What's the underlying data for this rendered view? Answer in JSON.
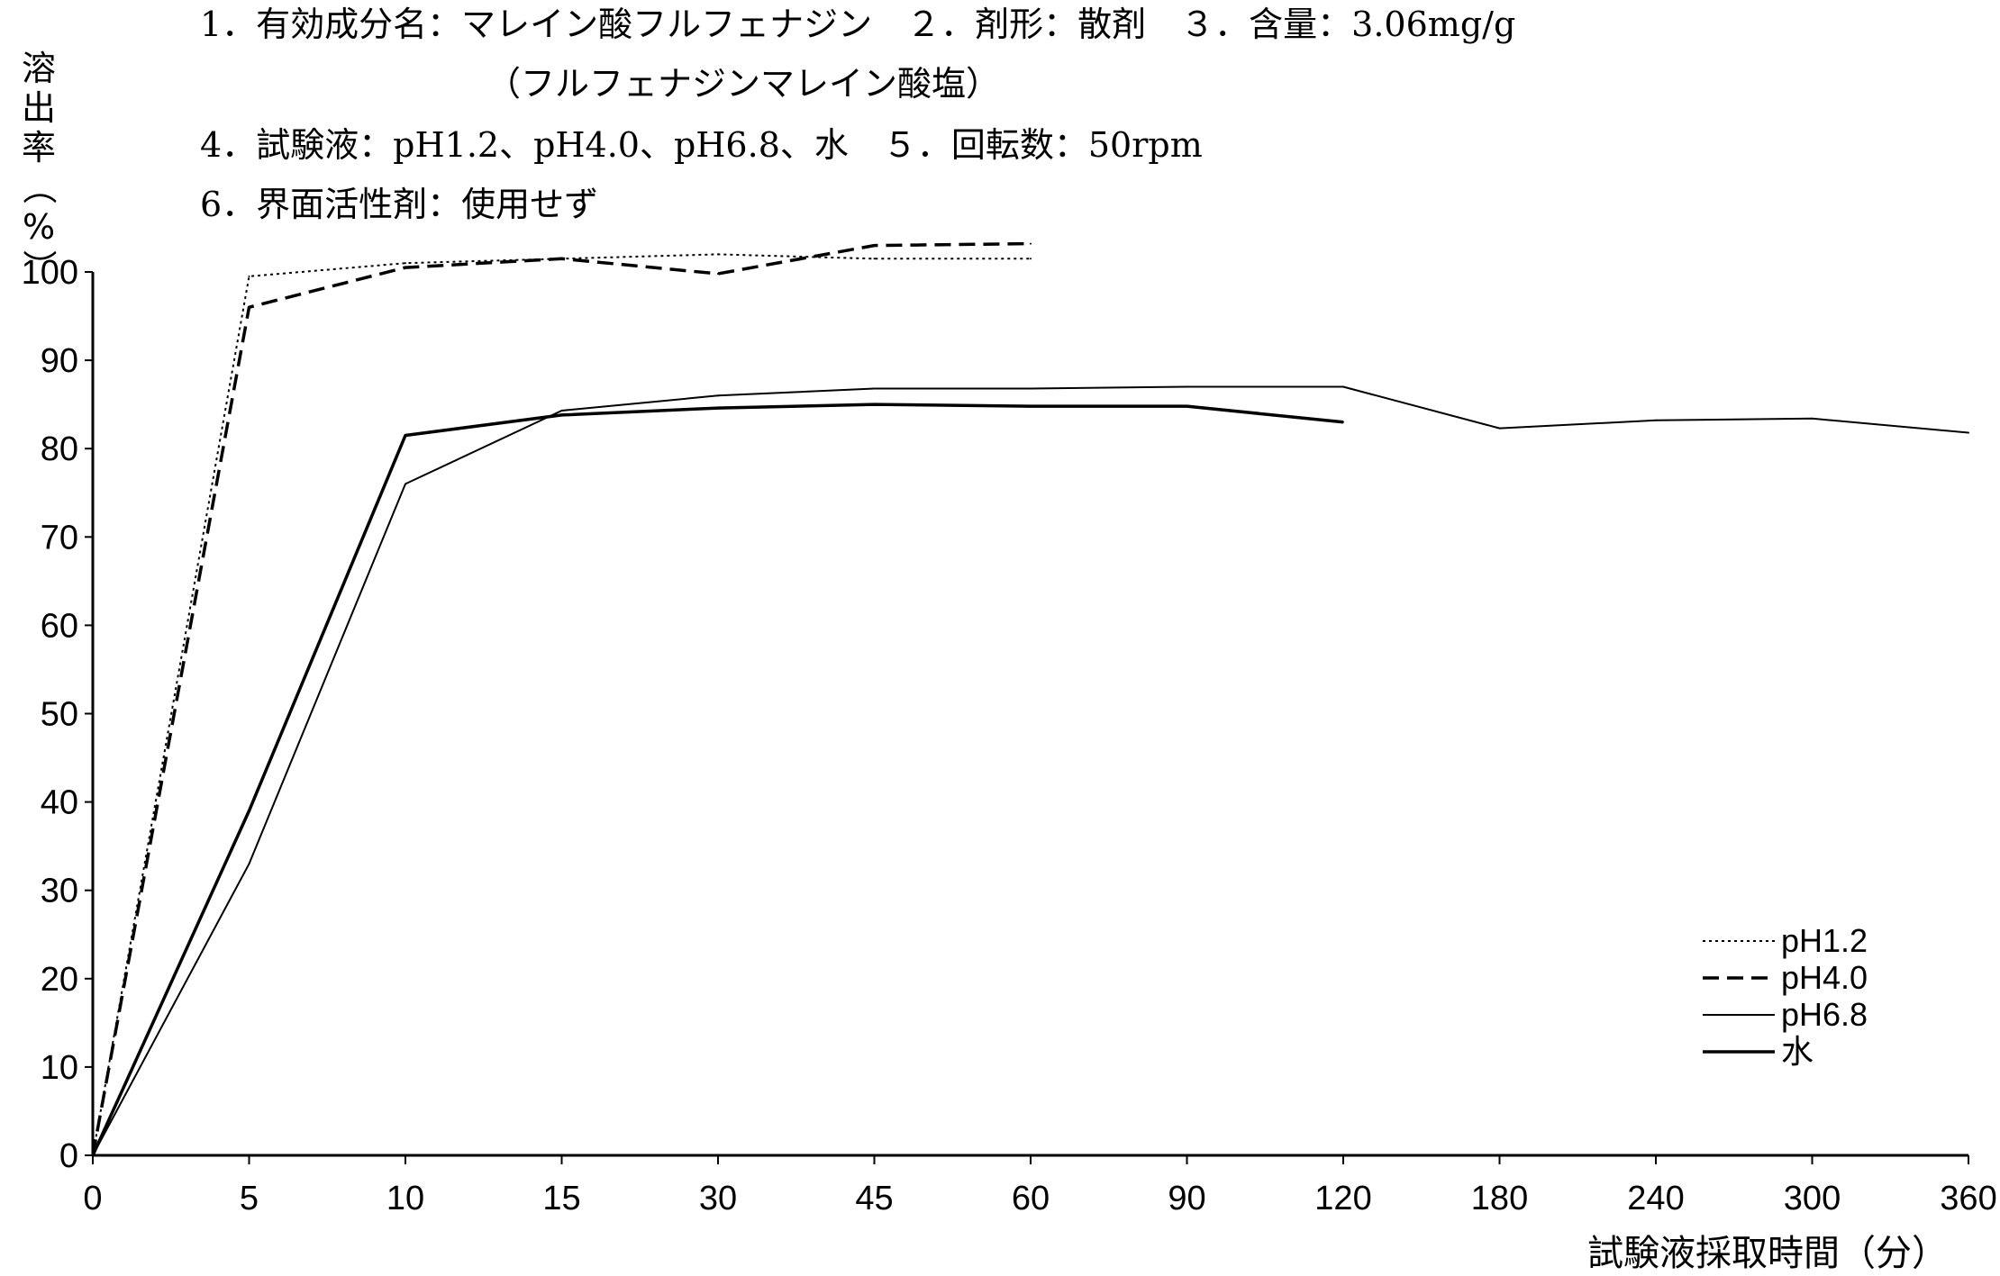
{
  "header": {
    "line1": "1．有効成分名：マレイン酸フルフェナジン　２．剤形：散剤　３．含量：3.06mg/g",
    "line2": "（フルフェナジンマレイン酸塩）",
    "line3": "4．試験液：pH1.2、pH4.0、pH6.8、水　５．回転数：50rpm",
    "line4": "6．界面活性剤：使用せず"
  },
  "chart_data": {
    "type": "line",
    "title": "",
    "xlabel": "試験液採取時間（分）",
    "ylabel": [
      "溶",
      "出",
      "率",
      "（",
      "%",
      "）"
    ],
    "categories": [
      "0",
      "5",
      "10",
      "15",
      "30",
      "45",
      "60",
      "90",
      "120",
      "180",
      "240",
      "300",
      "360"
    ],
    "yticks": [
      0,
      10,
      20,
      30,
      40,
      50,
      60,
      70,
      80,
      90,
      100
    ],
    "ylim": [
      0,
      100
    ],
    "grid": false,
    "legend_position": "bottom-right",
    "series": [
      {
        "name": "pH1.2",
        "style": "dotted",
        "values": [
          0,
          99.5,
          101,
          101.5,
          102,
          101.5,
          101.5,
          null,
          null,
          null,
          null,
          null,
          null
        ]
      },
      {
        "name": "pH4.0",
        "style": "dashed",
        "values": [
          0,
          96,
          100.5,
          101.5,
          99.8,
          103,
          103.2,
          null,
          null,
          null,
          null,
          null,
          null
        ]
      },
      {
        "name": "pH6.8",
        "style": "thin",
        "values": [
          0,
          33,
          76,
          84.3,
          86,
          86.8,
          86.8,
          87,
          87,
          82.3,
          83.2,
          83.4,
          81.8
        ]
      },
      {
        "name": "水",
        "style": "thick",
        "values": [
          0,
          39,
          81.5,
          83.8,
          84.6,
          85,
          84.8,
          84.8,
          83,
          null,
          null,
          null,
          null
        ]
      }
    ]
  }
}
